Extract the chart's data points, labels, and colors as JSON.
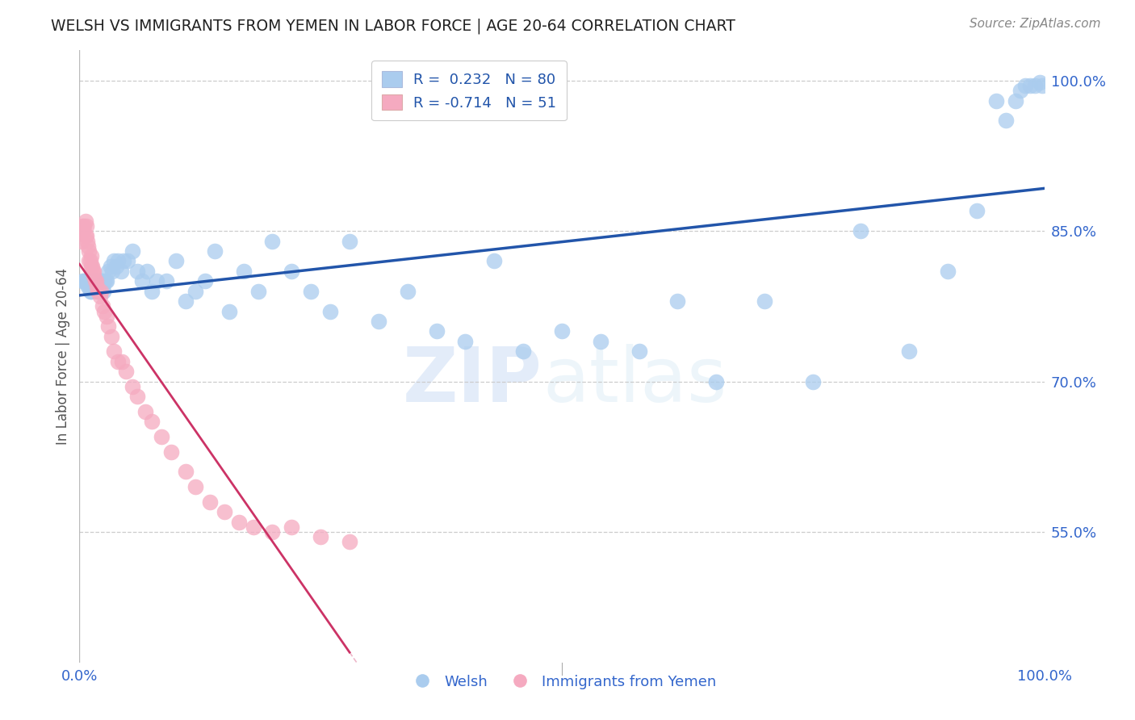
{
  "title": "WELSH VS IMMIGRANTS FROM YEMEN IN LABOR FORCE | AGE 20-64 CORRELATION CHART",
  "source": "Source: ZipAtlas.com",
  "ylabel": "In Labor Force | Age 20-64",
  "xlim": [
    0.0,
    1.0
  ],
  "ylim": [
    0.42,
    1.03
  ],
  "yticks": [
    0.55,
    0.7,
    0.85,
    1.0
  ],
  "ytick_labels": [
    "55.0%",
    "70.0%",
    "85.0%",
    "100.0%"
  ],
  "xtick_labels": [
    "0.0%",
    "100.0%"
  ],
  "blue_line_color": "#2255aa",
  "pink_line_color": "#cc3366",
  "blue_scatter_color": "#aaccee",
  "pink_scatter_color": "#f5aac0",
  "legend_label_blue": "R =  0.232   N = 80",
  "legend_label_pink": "R = -0.714   N = 51",
  "watermark_zip": "ZIP",
  "watermark_atlas": "atlas",
  "welsh_x": [
    0.003,
    0.005,
    0.006,
    0.007,
    0.008,
    0.009,
    0.01,
    0.011,
    0.012,
    0.013,
    0.014,
    0.015,
    0.016,
    0.017,
    0.018,
    0.019,
    0.02,
    0.021,
    0.022,
    0.023,
    0.024,
    0.025,
    0.026,
    0.027,
    0.028,
    0.03,
    0.032,
    0.034,
    0.036,
    0.038,
    0.04,
    0.043,
    0.046,
    0.05,
    0.055,
    0.06,
    0.065,
    0.07,
    0.075,
    0.08,
    0.09,
    0.1,
    0.11,
    0.12,
    0.13,
    0.14,
    0.155,
    0.17,
    0.185,
    0.2,
    0.22,
    0.24,
    0.26,
    0.28,
    0.31,
    0.34,
    0.37,
    0.4,
    0.43,
    0.46,
    0.5,
    0.54,
    0.58,
    0.62,
    0.66,
    0.71,
    0.76,
    0.81,
    0.86,
    0.9,
    0.93,
    0.95,
    0.96,
    0.97,
    0.975,
    0.98,
    0.985,
    0.99,
    0.995,
    0.998
  ],
  "welsh_y": [
    0.8,
    0.8,
    0.8,
    0.8,
    0.8,
    0.795,
    0.795,
    0.79,
    0.79,
    0.795,
    0.8,
    0.8,
    0.8,
    0.8,
    0.795,
    0.79,
    0.8,
    0.8,
    0.8,
    0.8,
    0.795,
    0.79,
    0.8,
    0.8,
    0.8,
    0.81,
    0.815,
    0.81,
    0.82,
    0.815,
    0.82,
    0.81,
    0.82,
    0.82,
    0.83,
    0.81,
    0.8,
    0.81,
    0.79,
    0.8,
    0.8,
    0.82,
    0.78,
    0.79,
    0.8,
    0.83,
    0.77,
    0.81,
    0.79,
    0.84,
    0.81,
    0.79,
    0.77,
    0.84,
    0.76,
    0.79,
    0.75,
    0.74,
    0.82,
    0.73,
    0.75,
    0.74,
    0.73,
    0.78,
    0.7,
    0.78,
    0.7,
    0.85,
    0.73,
    0.81,
    0.87,
    0.98,
    0.96,
    0.98,
    0.99,
    0.995,
    0.995,
    0.995,
    0.998,
    0.995
  ],
  "yemen_x": [
    0.002,
    0.003,
    0.004,
    0.005,
    0.006,
    0.006,
    0.007,
    0.007,
    0.008,
    0.009,
    0.01,
    0.01,
    0.011,
    0.012,
    0.012,
    0.013,
    0.014,
    0.015,
    0.015,
    0.016,
    0.017,
    0.018,
    0.019,
    0.02,
    0.021,
    0.022,
    0.024,
    0.026,
    0.028,
    0.03,
    0.033,
    0.036,
    0.04,
    0.044,
    0.048,
    0.055,
    0.06,
    0.068,
    0.075,
    0.085,
    0.095,
    0.11,
    0.12,
    0.135,
    0.15,
    0.165,
    0.18,
    0.2,
    0.22,
    0.25,
    0.28
  ],
  "yemen_y": [
    0.84,
    0.855,
    0.85,
    0.855,
    0.845,
    0.86,
    0.845,
    0.855,
    0.84,
    0.835,
    0.82,
    0.83,
    0.82,
    0.815,
    0.825,
    0.815,
    0.81,
    0.805,
    0.81,
    0.8,
    0.8,
    0.795,
    0.79,
    0.79,
    0.785,
    0.79,
    0.775,
    0.77,
    0.765,
    0.755,
    0.745,
    0.73,
    0.72,
    0.72,
    0.71,
    0.695,
    0.685,
    0.67,
    0.66,
    0.645,
    0.63,
    0.61,
    0.595,
    0.58,
    0.57,
    0.56,
    0.555,
    0.55,
    0.555,
    0.545,
    0.54
  ]
}
